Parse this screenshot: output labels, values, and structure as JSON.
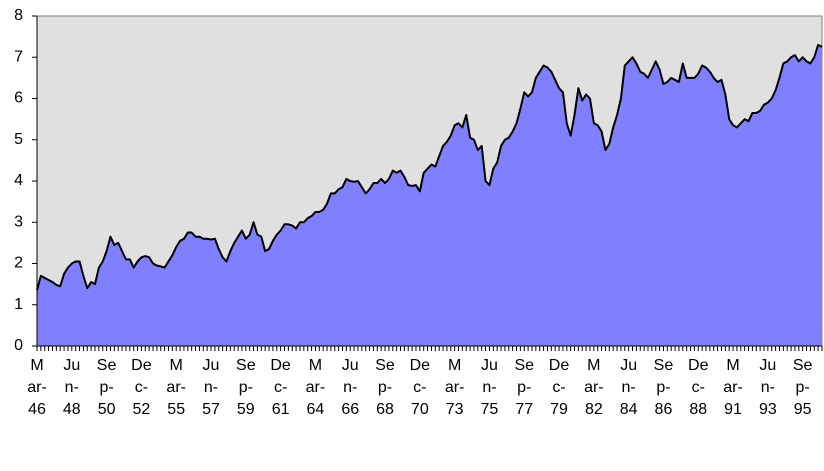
{
  "chart_data": {
    "type": "area",
    "categories": [
      "Mar-46",
      null,
      null,
      null,
      null,
      null,
      null,
      null,
      null,
      "Jun-48",
      null,
      null,
      null,
      null,
      null,
      null,
      null,
      null,
      "Sep-50",
      null,
      null,
      null,
      null,
      null,
      null,
      null,
      null,
      "Dec-52",
      null,
      null,
      null,
      null,
      null,
      null,
      null,
      null,
      "Mar-55",
      null,
      null,
      null,
      null,
      null,
      null,
      null,
      null,
      "Jun-57",
      null,
      null,
      null,
      null,
      null,
      null,
      null,
      null,
      "Sep-59",
      null,
      null,
      null,
      null,
      null,
      null,
      null,
      null,
      "Dec-61",
      null,
      null,
      null,
      null,
      null,
      null,
      null,
      null,
      "Mar-64",
      null,
      null,
      null,
      null,
      null,
      null,
      null,
      null,
      "Jun-66",
      null,
      null,
      null,
      null,
      null,
      null,
      null,
      null,
      "Sep-68",
      null,
      null,
      null,
      null,
      null,
      null,
      null,
      null,
      "Dec-70",
      null,
      null,
      null,
      null,
      null,
      null,
      null,
      null,
      "Mar-73",
      null,
      null,
      null,
      null,
      null,
      null,
      null,
      null,
      "Jun-75",
      null,
      null,
      null,
      null,
      null,
      null,
      null,
      null,
      "Sep-77",
      null,
      null,
      null,
      null,
      null,
      null,
      null,
      null,
      "Dec-79",
      null,
      null,
      null,
      null,
      null,
      null,
      null,
      null,
      "Mar-82",
      null,
      null,
      null,
      null,
      null,
      null,
      null,
      null,
      "Jun-84",
      null,
      null,
      null,
      null,
      null,
      null,
      null,
      null,
      "Sep-86",
      null,
      null,
      null,
      null,
      null,
      null,
      null,
      null,
      "Dec-88",
      null,
      null,
      null,
      null,
      null,
      null,
      null,
      null,
      "Mar-91",
      null,
      null,
      null,
      null,
      null,
      null,
      null,
      null,
      "Jun-93",
      null,
      null,
      null,
      null,
      null,
      null,
      null,
      null,
      "Sep-95",
      null,
      null,
      null,
      null,
      null
    ],
    "values": [
      1.35,
      1.7,
      1.65,
      1.6,
      1.55,
      1.48,
      1.45,
      1.75,
      1.9,
      2.0,
      2.05,
      2.05,
      1.7,
      1.4,
      1.55,
      1.5,
      1.9,
      2.05,
      2.3,
      2.65,
      2.45,
      2.5,
      2.3,
      2.1,
      2.1,
      1.9,
      2.05,
      2.15,
      2.18,
      2.15,
      2.0,
      1.95,
      1.93,
      1.9,
      2.05,
      2.2,
      2.4,
      2.55,
      2.6,
      2.75,
      2.75,
      2.65,
      2.65,
      2.6,
      2.6,
      2.58,
      2.6,
      2.35,
      2.15,
      2.05,
      2.3,
      2.5,
      2.65,
      2.8,
      2.6,
      2.7,
      3.0,
      2.7,
      2.65,
      2.3,
      2.35,
      2.55,
      2.7,
      2.8,
      2.95,
      2.95,
      2.92,
      2.85,
      3.0,
      3.0,
      3.1,
      3.15,
      3.25,
      3.25,
      3.3,
      3.45,
      3.7,
      3.7,
      3.8,
      3.85,
      4.05,
      4.0,
      3.98,
      4.0,
      3.85,
      3.7,
      3.8,
      3.95,
      3.95,
      4.05,
      3.95,
      4.05,
      4.25,
      4.2,
      4.25,
      4.1,
      3.9,
      3.88,
      3.9,
      3.75,
      4.2,
      4.3,
      4.4,
      4.35,
      4.6,
      4.85,
      4.95,
      5.1,
      5.35,
      5.4,
      5.3,
      5.6,
      5.05,
      5.0,
      4.75,
      4.85,
      4.0,
      3.9,
      4.3,
      4.45,
      4.85,
      5.0,
      5.05,
      5.2,
      5.4,
      5.75,
      6.15,
      6.05,
      6.15,
      6.5,
      6.65,
      6.8,
      6.75,
      6.65,
      6.45,
      6.25,
      6.15,
      5.4,
      5.1,
      5.6,
      6.25,
      5.95,
      6.1,
      6.0,
      5.4,
      5.35,
      5.2,
      4.75,
      4.9,
      5.3,
      5.6,
      6.0,
      6.8,
      6.9,
      7.0,
      6.85,
      6.65,
      6.6,
      6.5,
      6.7,
      6.9,
      6.7,
      6.35,
      6.4,
      6.5,
      6.45,
      6.4,
      6.85,
      6.5,
      6.5,
      6.5,
      6.6,
      6.8,
      6.75,
      6.65,
      6.5,
      6.4,
      6.45,
      6.1,
      5.5,
      5.35,
      5.3,
      5.4,
      5.5,
      5.45,
      5.65,
      5.65,
      5.7,
      5.85,
      5.9,
      6.0,
      6.2,
      6.5,
      6.85,
      6.9,
      7.0,
      7.05,
      6.9,
      7.0,
      6.9,
      6.85,
      7.0,
      7.3,
      7.25
    ],
    "color": "#8080ff",
    "line_color": "#000000",
    "plot_background": "#e0e0e0",
    "ylim": [
      0,
      8
    ],
    "yticks": [
      0,
      1,
      2,
      3,
      4,
      5,
      6,
      7,
      8
    ],
    "grid": false
  }
}
